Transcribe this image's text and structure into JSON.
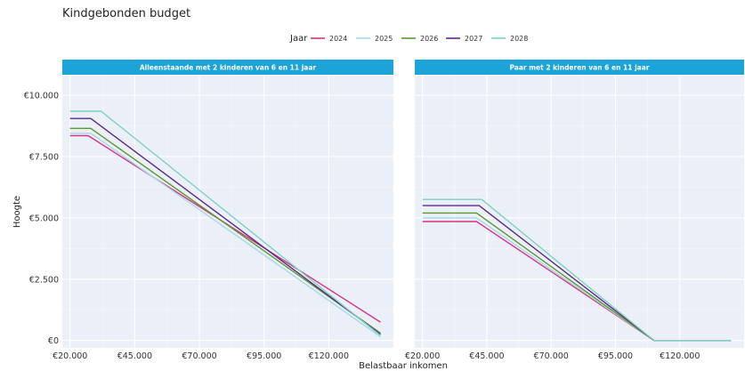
{
  "chart_data": {
    "type": "line",
    "title": "Kindgebonden budget",
    "xlabel": "Belastbaar inkomen",
    "ylabel": "Hoogte",
    "legend_title": "Jaar",
    "legend_position": "top",
    "grid": true,
    "xlim": [
      17000,
      145000
    ],
    "ylim": [
      -300,
      10800
    ],
    "x_ticks": [
      20000,
      45000,
      70000,
      95000,
      120000
    ],
    "x_tick_labels": [
      "€20.000",
      "€45.000",
      "€70.000",
      "€95.000",
      "€120.000"
    ],
    "y_ticks": [
      0,
      2500,
      5000,
      7500,
      10000
    ],
    "y_tick_labels": [
      "€0",
      "€2.500",
      "€5.000",
      "€7.500",
      "€10.000"
    ],
    "series_styles": [
      {
        "name": "2024",
        "color": "#d63384"
      },
      {
        "name": "2025",
        "color": "#a8d8ea"
      },
      {
        "name": "2026",
        "color": "#5a9a2a"
      },
      {
        "name": "2027",
        "color": "#5b2a86"
      },
      {
        "name": "2028",
        "color": "#7fd1c1"
      }
    ],
    "panels": [
      {
        "strip": "Alleenstaande met 2 kinderen van 6 en 11 jaar",
        "series": [
          {
            "name": "2024",
            "x": [
              20000,
              27000,
              140000
            ],
            "y": [
              8350,
              8350,
              750
            ]
          },
          {
            "name": "2025",
            "x": [
              20000,
              28000,
              140000
            ],
            "y": [
              8450,
              8450,
              150
            ]
          },
          {
            "name": "2026",
            "x": [
              20000,
              28000,
              140000
            ],
            "y": [
              8650,
              8650,
              300
            ]
          },
          {
            "name": "2027",
            "x": [
              20000,
              28000,
              140000
            ],
            "y": [
              9050,
              9050,
              250
            ]
          },
          {
            "name": "2028",
            "x": [
              20000,
              32000,
              140000
            ],
            "y": [
              9350,
              9350,
              200
            ]
          }
        ]
      },
      {
        "strip": "Paar met 2 kinderen van 6 en 11 jaar",
        "series": [
          {
            "name": "2024",
            "x": [
              20000,
              41000,
              110000,
              140000
            ],
            "y": [
              4850,
              4850,
              0,
              0
            ]
          },
          {
            "name": "2025",
            "x": [
              20000,
              41000,
              110000,
              140000
            ],
            "y": [
              5000,
              5000,
              0,
              0
            ]
          },
          {
            "name": "2026",
            "x": [
              20000,
              41000,
              110000,
              140000
            ],
            "y": [
              5200,
              5200,
              0,
              0
            ]
          },
          {
            "name": "2027",
            "x": [
              20000,
              42000,
              110000,
              140000
            ],
            "y": [
              5500,
              5500,
              0,
              0
            ]
          },
          {
            "name": "2028",
            "x": [
              20000,
              43000,
              110000,
              140000
            ],
            "y": [
              5750,
              5750,
              0,
              0
            ]
          }
        ]
      }
    ]
  }
}
